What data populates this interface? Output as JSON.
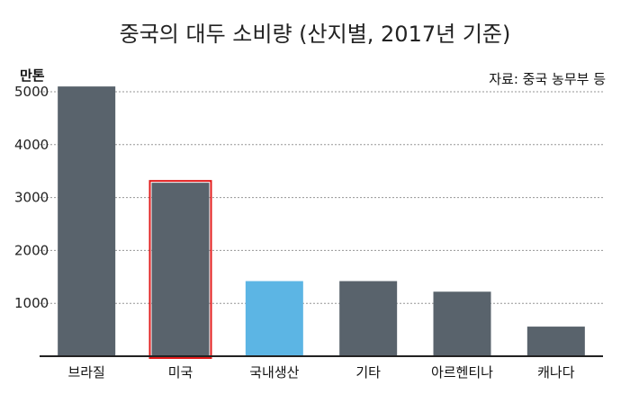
{
  "chart_data": {
    "type": "bar",
    "title": "중국의 대두 소비량 (산지별, 2017년 기준)",
    "unit": "만톤",
    "source": "자료: 중국 농무부 등",
    "categories": [
      "브라질",
      "미국",
      "국내생산",
      "기타",
      "아르헨티나",
      "캐나다"
    ],
    "values": [
      5100,
      3280,
      1420,
      1420,
      1220,
      560
    ],
    "yticks": [
      1000,
      2000,
      3000,
      4000,
      5000
    ],
    "ylim": [
      0,
      5000
    ],
    "grid": true,
    "bar_colors": [
      "#59636c",
      "#59636c",
      "#5cb5e4",
      "#59636c",
      "#59636c",
      "#59636c"
    ],
    "highlight": {
      "category": "미국",
      "outline_color": "#e11b1b"
    }
  }
}
